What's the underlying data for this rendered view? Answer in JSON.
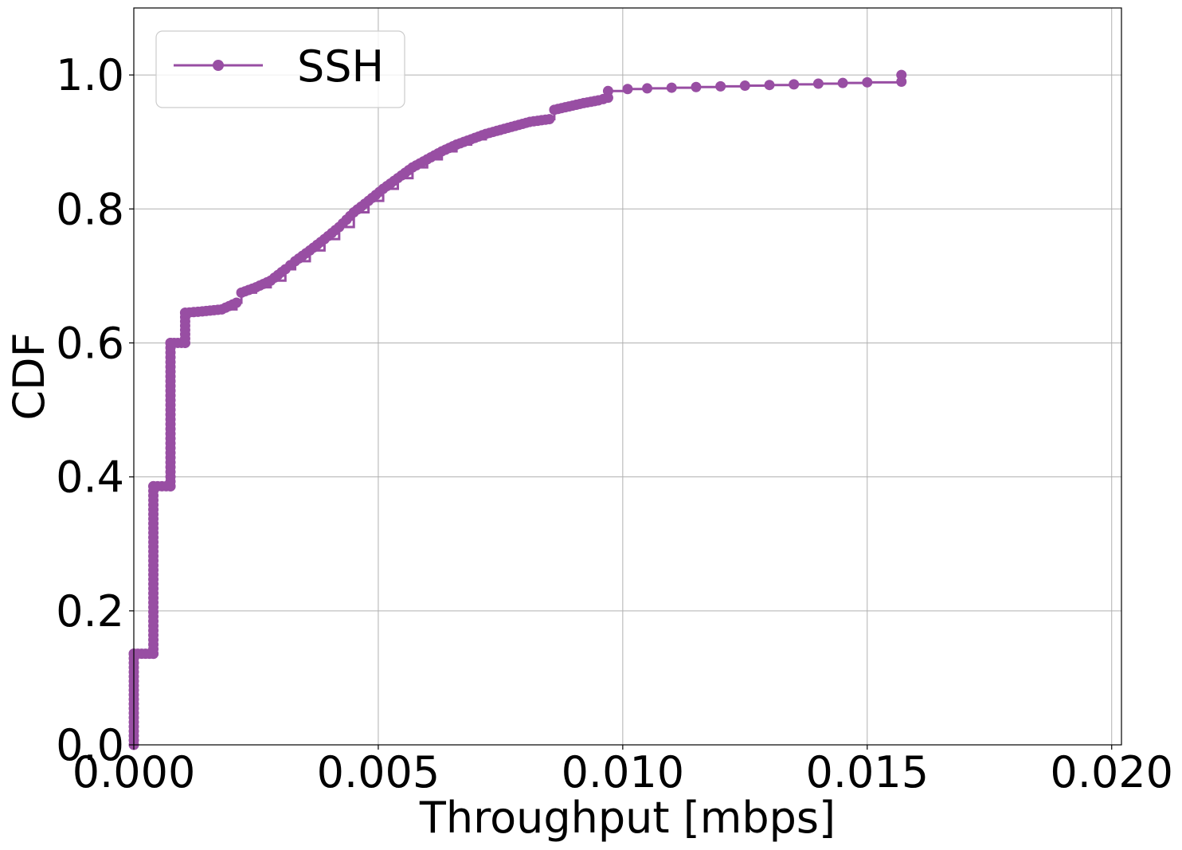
{
  "chart_data": {
    "type": "line",
    "title": "",
    "xlabel": "Throughput [mbps]",
    "ylabel": "CDF",
    "xlim": [
      0.0,
      0.0202
    ],
    "ylim": [
      0.0,
      1.1
    ],
    "xticks": [
      0.0,
      0.005,
      0.01,
      0.015,
      0.02
    ],
    "xtick_labels": [
      "0.000",
      "0.005",
      "0.010",
      "0.015",
      "0.020"
    ],
    "yticks": [
      0.0,
      0.2,
      0.4,
      0.6,
      0.8,
      1.0
    ],
    "ytick_labels": [
      "0.0",
      "0.2",
      "0.4",
      "0.6",
      "0.8",
      "1.0"
    ],
    "grid": true,
    "legend_position": "top-left",
    "series": [
      {
        "name": "SSH",
        "color": "#984ea3",
        "marker": "circle",
        "step": true,
        "points": [
          [
            0.0,
            0.0
          ],
          [
            0.0,
            0.136
          ],
          [
            0.0004,
            0.136
          ],
          [
            0.0004,
            0.386
          ],
          [
            0.00075,
            0.386
          ],
          [
            0.00075,
            0.6
          ],
          [
            0.00105,
            0.6
          ],
          [
            0.00105,
            0.645
          ],
          [
            0.0014,
            0.647
          ],
          [
            0.0018,
            0.65
          ],
          [
            0.0021,
            0.66
          ],
          [
            0.0022,
            0.675
          ],
          [
            0.0025,
            0.683
          ],
          [
            0.0028,
            0.693
          ],
          [
            0.0031,
            0.71
          ],
          [
            0.0033,
            0.722
          ],
          [
            0.0036,
            0.738
          ],
          [
            0.0039,
            0.755
          ],
          [
            0.0042,
            0.773
          ],
          [
            0.0045,
            0.795
          ],
          [
            0.0048,
            0.812
          ],
          [
            0.0051,
            0.83
          ],
          [
            0.0054,
            0.846
          ],
          [
            0.0057,
            0.862
          ],
          [
            0.006,
            0.874
          ],
          [
            0.0063,
            0.886
          ],
          [
            0.0066,
            0.896
          ],
          [
            0.0069,
            0.904
          ],
          [
            0.0072,
            0.912
          ],
          [
            0.0075,
            0.918
          ],
          [
            0.0078,
            0.924
          ],
          [
            0.0081,
            0.93
          ],
          [
            0.0085,
            0.934
          ],
          [
            0.0086,
            0.948
          ],
          [
            0.0089,
            0.953
          ],
          [
            0.0092,
            0.958
          ],
          [
            0.0095,
            0.962
          ],
          [
            0.0097,
            0.966
          ],
          [
            0.0097,
            0.976
          ],
          [
            0.0101,
            0.979
          ],
          [
            0.0105,
            0.98
          ],
          [
            0.011,
            0.981
          ],
          [
            0.0115,
            0.982
          ],
          [
            0.012,
            0.983
          ],
          [
            0.0125,
            0.984
          ],
          [
            0.013,
            0.985
          ],
          [
            0.0135,
            0.986
          ],
          [
            0.014,
            0.987
          ],
          [
            0.0145,
            0.988
          ],
          [
            0.015,
            0.989
          ],
          [
            0.0157,
            0.99
          ],
          [
            0.0157,
            1.0
          ]
        ]
      }
    ]
  }
}
